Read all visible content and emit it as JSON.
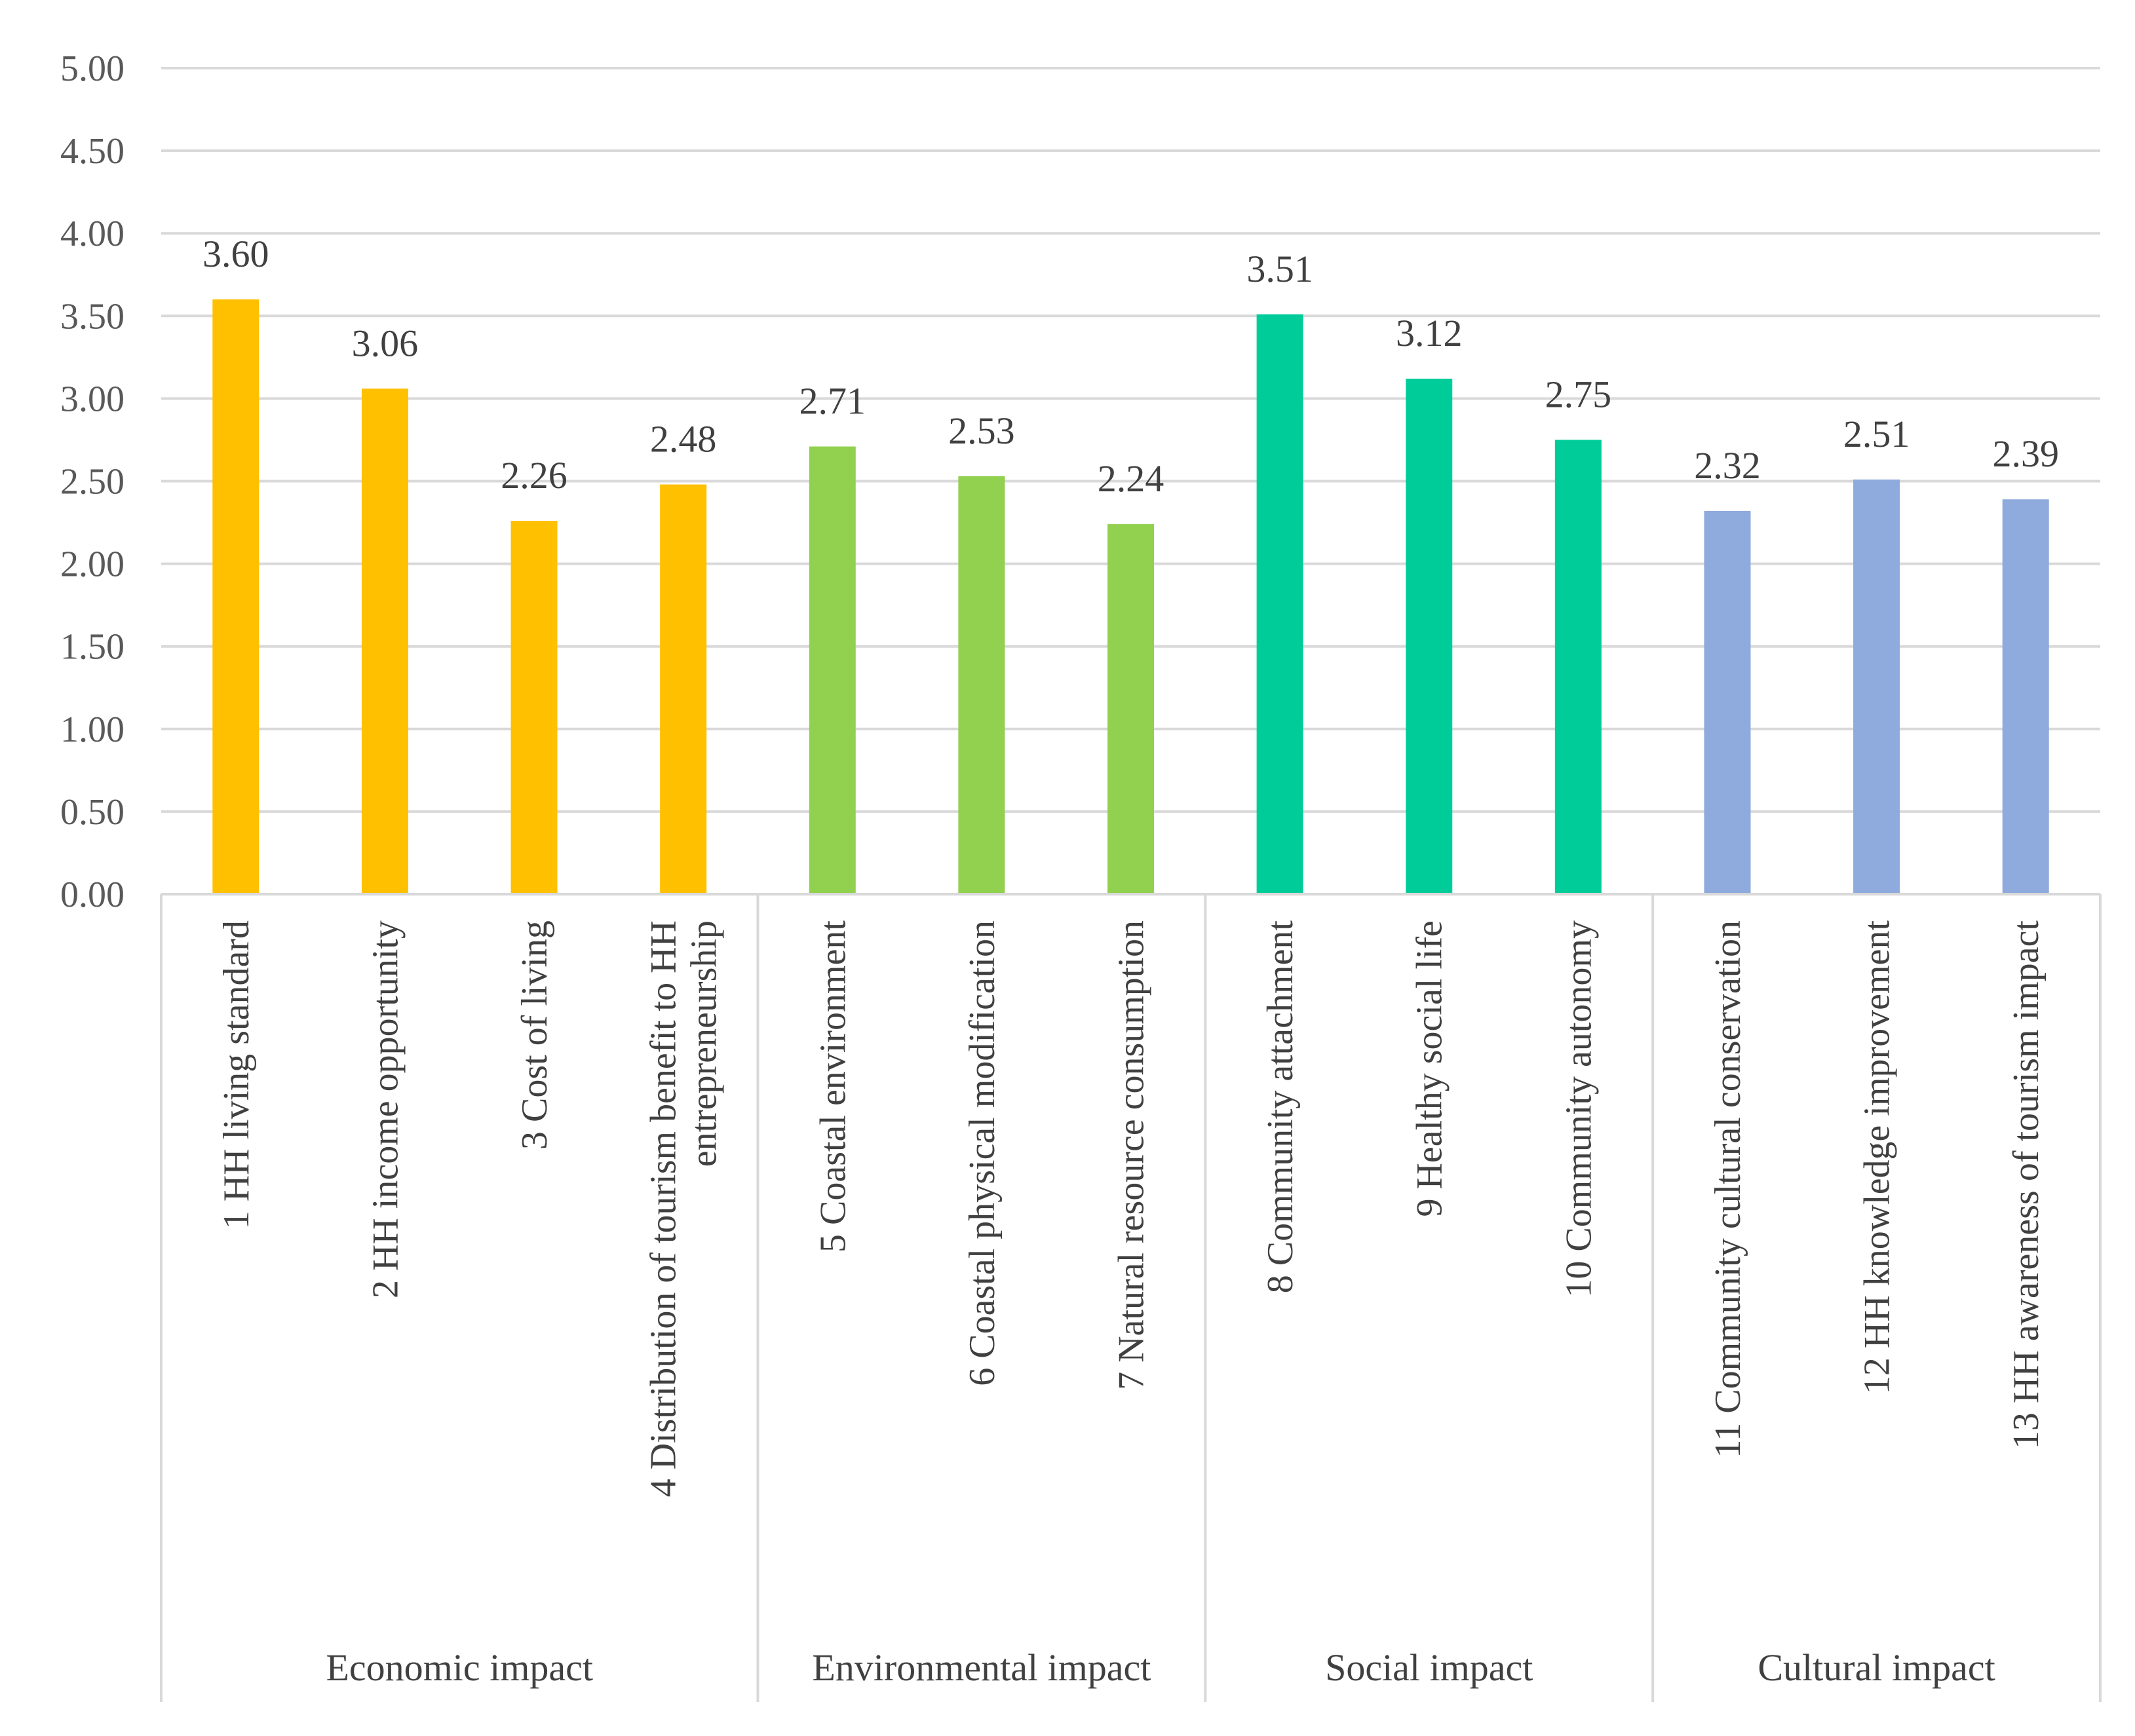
{
  "chart_data": {
    "type": "bar",
    "title": "",
    "xlabel": "",
    "ylabel": "",
    "ylim": [
      0,
      5
    ],
    "yticks": [
      "0.00",
      "0.50",
      "1.00",
      "1.50",
      "2.00",
      "2.50",
      "3.00",
      "3.50",
      "4.00",
      "4.50",
      "5.00"
    ],
    "grid": true,
    "groups": [
      {
        "name": "Economic impact",
        "color": "#FFC000",
        "items": [
          {
            "label": [
              "1 HH living standard"
            ],
            "value": 3.6,
            "value_label": "3.60"
          },
          {
            "label": [
              "2 HH income opportunity"
            ],
            "value": 3.06,
            "value_label": "3.06"
          },
          {
            "label": [
              "3 Cost of living"
            ],
            "value": 2.26,
            "value_label": "2.26"
          },
          {
            "label": [
              "4 Distribution of tourism benefit to HH",
              "entrepreneurship"
            ],
            "value": 2.48,
            "value_label": "2.48"
          }
        ]
      },
      {
        "name": "Environmental impact",
        "color": "#92D050",
        "items": [
          {
            "label": [
              "5 Coastal environment"
            ],
            "value": 2.71,
            "value_label": "2.71"
          },
          {
            "label": [
              "6 Coastal physical modification"
            ],
            "value": 2.53,
            "value_label": "2.53"
          },
          {
            "label": [
              "7 Natural resource consumption"
            ],
            "value": 2.24,
            "value_label": "2.24"
          }
        ]
      },
      {
        "name": "Social impact",
        "color": "#00CC99",
        "items": [
          {
            "label": [
              "8 Community attachment"
            ],
            "value": 3.51,
            "value_label": "3.51"
          },
          {
            "label": [
              "9 Healthy social life"
            ],
            "value": 3.12,
            "value_label": "3.12"
          },
          {
            "label": [
              "10 Community autonomy"
            ],
            "value": 2.75,
            "value_label": "2.75"
          }
        ]
      },
      {
        "name": "Cultural impact",
        "color": "#8FAADC",
        "items": [
          {
            "label": [
              "11 Community cultural conservation"
            ],
            "value": 2.32,
            "value_label": "2.32"
          },
          {
            "label": [
              "12 HH knowledge improvement"
            ],
            "value": 2.51,
            "value_label": "2.51"
          },
          {
            "label": [
              "13 HH awareness of tourism impact"
            ],
            "value": 2.39,
            "value_label": "2.39"
          }
        ]
      }
    ]
  }
}
